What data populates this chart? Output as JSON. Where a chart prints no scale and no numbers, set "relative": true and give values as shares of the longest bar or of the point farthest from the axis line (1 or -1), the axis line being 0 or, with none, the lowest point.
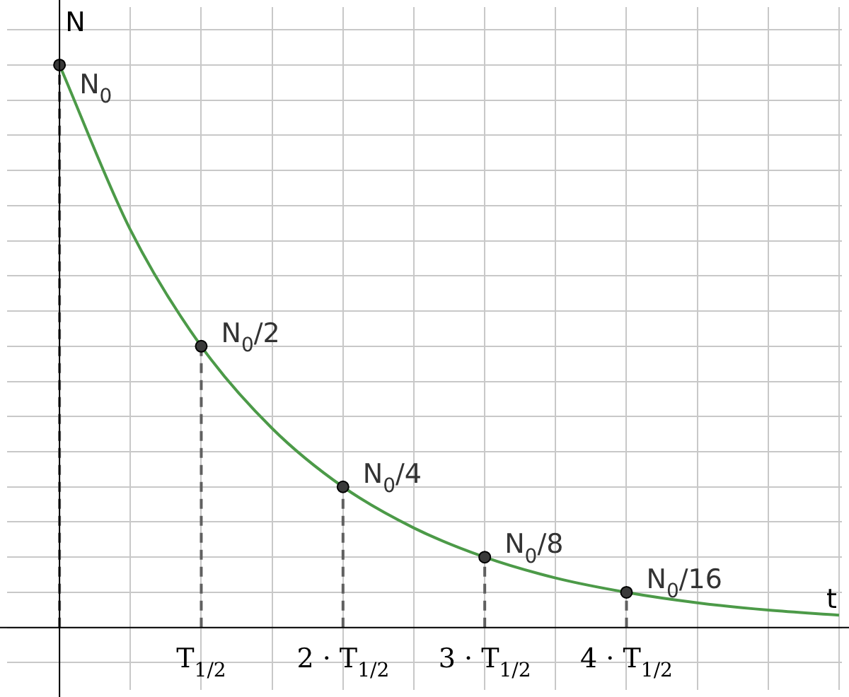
{
  "chart_data": {
    "type": "line",
    "relative": true,
    "xlabel": "t",
    "ylabel": "N",
    "grid": true,
    "categories": [
      null,
      null,
      "T$_{1/2}$",
      null,
      "2 · T$_{1/2}$",
      null,
      "3 · T$_{1/2}$",
      null,
      "4 · T$_{1/2}$",
      null,
      null,
      null
    ],
    "series": [
      {
        "type": "line",
        "color": "#4c9a48",
        "marker": "none",
        "values": [
          1,
          0.707,
          0.5,
          0.354,
          0.25,
          0.177,
          0.125,
          0.088,
          0.0625,
          0.044,
          0.031,
          0.022
        ]
      },
      {
        "type": "lollipop",
        "color": "#3a3a3a",
        "marker": "circle",
        "line_style": "dashed",
        "values": [
          1,
          null,
          0.5,
          null,
          0.25,
          null,
          0.125,
          null,
          0.0625,
          null,
          null,
          null
        ]
      }
    ],
    "annotations": [
      "N$_{0}$",
      {
        "text": "N$_{0}$/2",
        "x": "T$_{1/2}$",
        "y": 0.5
      },
      {
        "text": "N$_{0}$/4",
        "x": "2 · T$_{1/2}$",
        "y": 0.25
      },
      {
        "text": "N$_{0}$/8",
        "x": "3 · T$_{1/2}$",
        "y": 0.125
      },
      {
        "text": "N$_{0}$/16",
        "x": "4 · T$_{1/2}$",
        "y": 0.0625
      }
    ]
  }
}
